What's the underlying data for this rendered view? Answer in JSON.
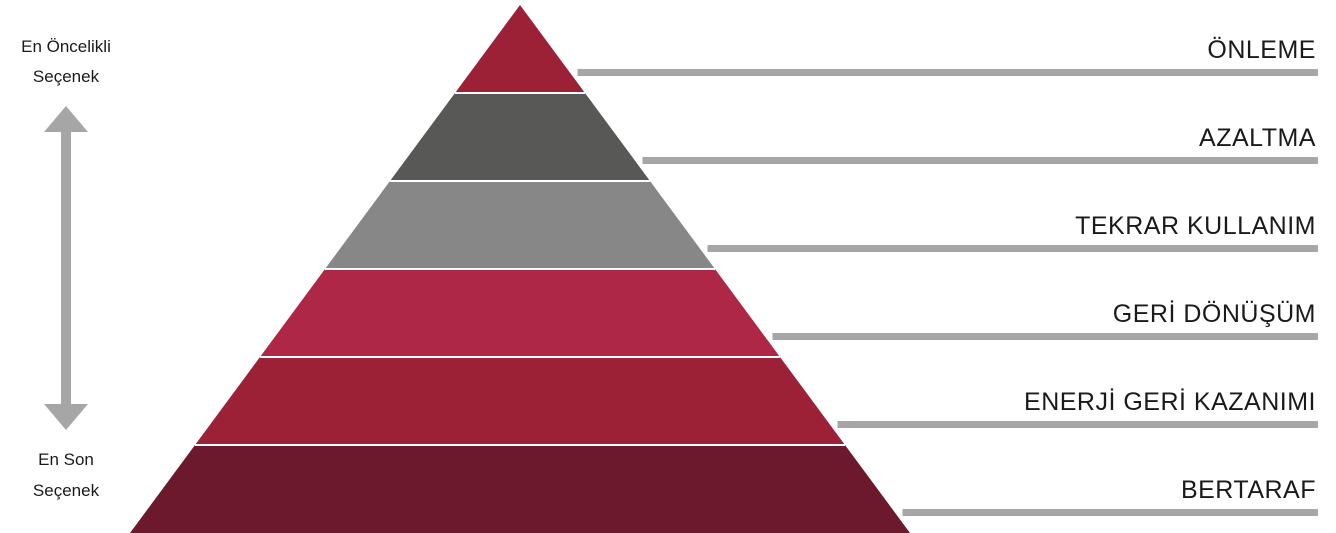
{
  "axis": {
    "top_label_line1": "En Öncelikli",
    "top_label_line2": "Seçenek",
    "bottom_label_line1": "En Son",
    "bottom_label_line2": "Seçenek",
    "arrow_color": "#a6a6a6"
  },
  "pyramid": {
    "levels": [
      {
        "label": "ÖNLEME",
        "color": "#9c2036"
      },
      {
        "label": "AZALTMA",
        "color": "#585856"
      },
      {
        "label": "TEKRAR KULLANIM",
        "color": "#878787"
      },
      {
        "label": "GERİ DÖNÜŞÜM",
        "color": "#ae2746"
      },
      {
        "label": "ENERJİ GERİ KAZANIMI",
        "color": "#9c2036"
      },
      {
        "label": "BERTARAF",
        "color": "#6c192d"
      }
    ],
    "leader_line_color": "#a6a6a6",
    "separator_color": "#ffffff"
  }
}
